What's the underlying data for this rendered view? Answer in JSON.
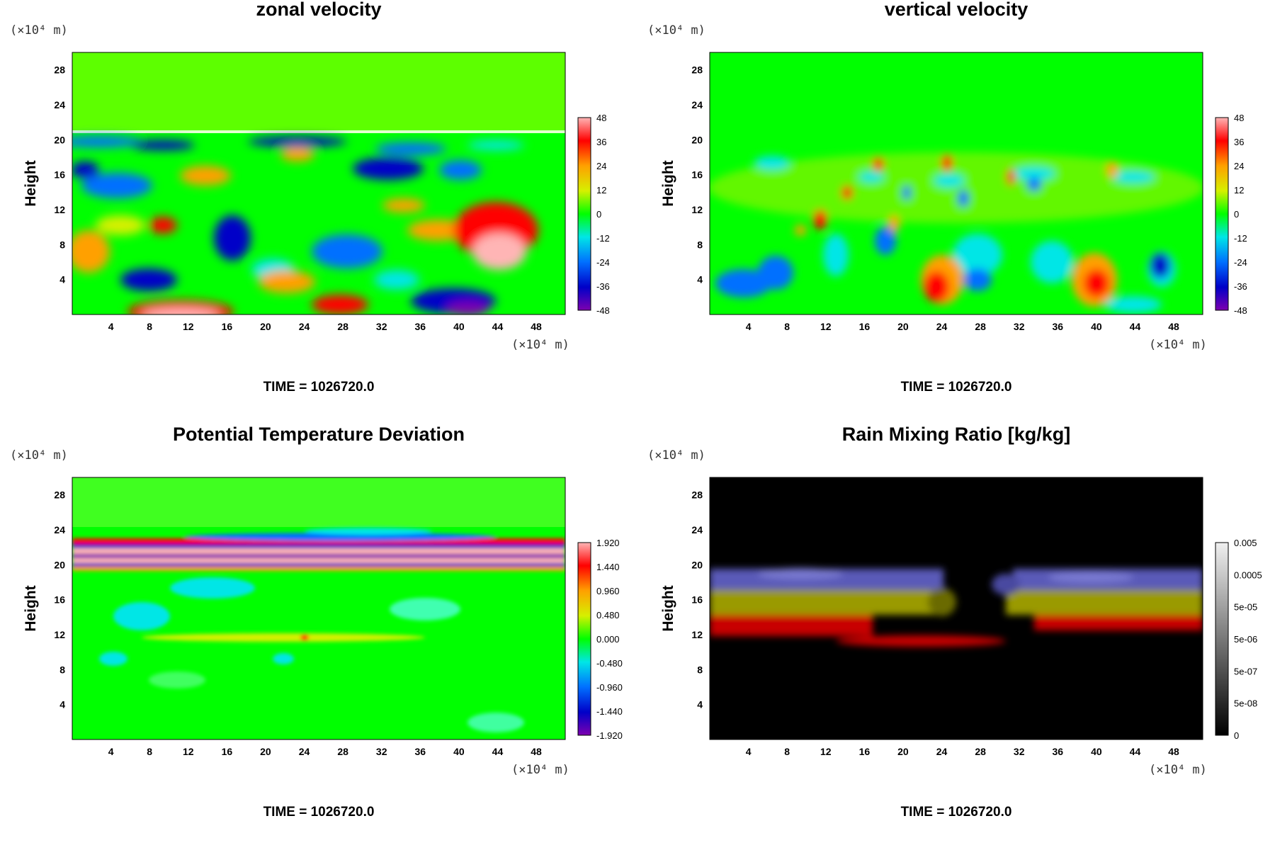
{
  "chart_data": [
    {
      "type": "heatmap",
      "title": "zonal velocity",
      "ylabel": "Height",
      "x_unit": "(×10⁴ m)",
      "y_unit": "(×10⁴ m)",
      "x_ticks": [
        "4",
        "8",
        "12",
        "16",
        "20",
        "24",
        "28",
        "32",
        "36",
        "40",
        "44",
        "48"
      ],
      "y_ticks": [
        "4",
        "8",
        "12",
        "16",
        "20",
        "24",
        "28"
      ],
      "xlim": [
        0,
        51
      ],
      "ylim": [
        0,
        30
      ],
      "colorbar_labels": [
        "48",
        "36",
        "24",
        "12",
        "0",
        "-12",
        "-24",
        "-36",
        "-48"
      ],
      "colormap": "rainbow",
      "footer": "TIME = 1026720.0"
    },
    {
      "type": "heatmap",
      "title": "vertical velocity",
      "ylabel": "Height",
      "x_unit": "(×10⁴ m)",
      "y_unit": "(×10⁴ m)",
      "x_ticks": [
        "4",
        "8",
        "12",
        "16",
        "20",
        "24",
        "28",
        "32",
        "36",
        "40",
        "44",
        "48"
      ],
      "y_ticks": [
        "4",
        "8",
        "12",
        "16",
        "20",
        "24",
        "28"
      ],
      "xlim": [
        0,
        51
      ],
      "ylim": [
        0,
        30
      ],
      "colorbar_labels": [
        "48",
        "36",
        "24",
        "12",
        "0",
        "-12",
        "-24",
        "-36",
        "-48"
      ],
      "colormap": "rainbow",
      "footer": "TIME = 1026720.0"
    },
    {
      "type": "heatmap",
      "title": "Potential Temperature Deviation",
      "ylabel": "Height",
      "x_unit": "(×10⁴ m)",
      "y_unit": "(×10⁴ m)",
      "x_ticks": [
        "4",
        "8",
        "12",
        "16",
        "20",
        "24",
        "28",
        "32",
        "36",
        "40",
        "44",
        "48"
      ],
      "y_ticks": [
        "4",
        "8",
        "12",
        "16",
        "20",
        "24",
        "28"
      ],
      "xlim": [
        0,
        51
      ],
      "ylim": [
        0,
        30
      ],
      "colorbar_labels": [
        "1.920",
        "1.440",
        "0.960",
        "0.480",
        "0.000",
        "-0.480",
        "-0.960",
        "-1.440",
        "-1.920"
      ],
      "colormap": "rainbow",
      "footer": "TIME = 1026720.0"
    },
    {
      "type": "heatmap",
      "title": "Rain Mixing Ratio [kg/kg]",
      "ylabel": "Height",
      "x_unit": "(×10⁴ m)",
      "y_unit": "(×10⁴ m)",
      "x_ticks": [
        "4",
        "8",
        "12",
        "16",
        "20",
        "24",
        "28",
        "32",
        "36",
        "40",
        "44",
        "48"
      ],
      "y_ticks": [
        "4",
        "8",
        "12",
        "16",
        "20",
        "24",
        "28"
      ],
      "xlim": [
        0,
        51
      ],
      "ylim": [
        0,
        30
      ],
      "colorbar_labels": [
        "0.005",
        "0.0005",
        "5e-05",
        "5e-06",
        "5e-07",
        "5e-08",
        "0"
      ],
      "colormap": "gray",
      "footer": "TIME = 1026720.0"
    }
  ]
}
